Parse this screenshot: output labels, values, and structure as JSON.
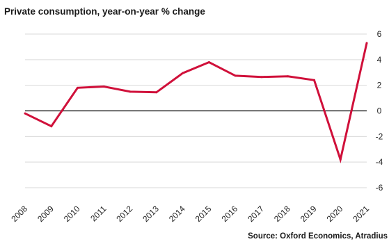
{
  "chart_data": {
    "type": "line",
    "title": "Private consumption, year-on-year % change",
    "source": "Source: Oxford Economics, Atradius",
    "xlabel": "",
    "ylabel": "",
    "x": [
      "2008",
      "2009",
      "2010",
      "2011",
      "2012",
      "2013",
      "2014",
      "2015",
      "2016",
      "2017",
      "2018",
      "2019",
      "2020",
      "2021"
    ],
    "series": [
      {
        "values": [
          -0.2,
          -1.2,
          1.8,
          1.9,
          1.5,
          1.45,
          2.95,
          3.8,
          2.75,
          2.65,
          2.7,
          2.4,
          -3.8,
          5.3
        ]
      }
    ],
    "ylim": [
      -6,
      6
    ],
    "yticks": [
      "-6",
      "-4",
      "-2",
      "0",
      "2",
      "4",
      "6"
    ],
    "yaxis_position": "right",
    "grid": true,
    "line_color": "#d0103a",
    "zero_line_color": "#000000",
    "grid_color": "#d9d9d9"
  }
}
